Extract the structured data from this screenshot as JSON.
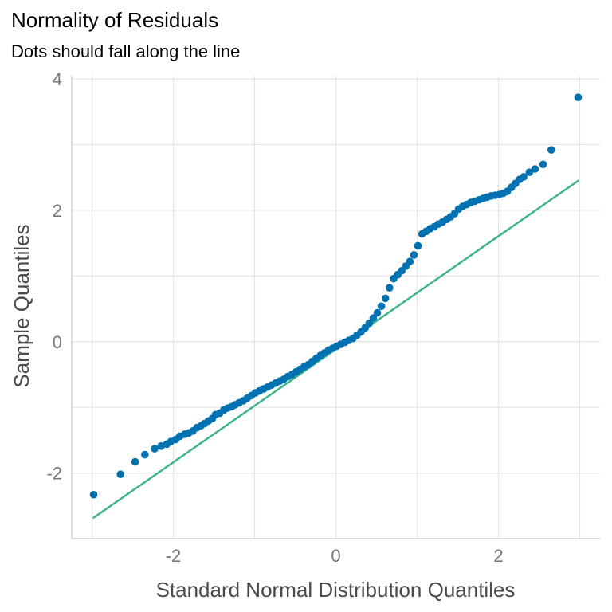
{
  "chart_data": {
    "type": "scatter",
    "title": "Normality of Residuals",
    "subtitle": "Dots should fall along the line",
    "xlabel": "Standard Normal Distribution Quantiles",
    "ylabel": "Sample Quantiles",
    "xlim": [
      -3.25,
      3.25
    ],
    "ylim": [
      -3.0,
      4.05
    ],
    "x_ticks": [
      -2,
      0,
      2
    ],
    "x_tick_labels": [
      "-2",
      "0",
      "2"
    ],
    "y_ticks": [
      -2,
      0,
      2,
      4
    ],
    "y_tick_labels": [
      "-2",
      "0",
      "2",
      "4"
    ],
    "grid": true,
    "legend": "none",
    "colors": {
      "points": "#0072b2",
      "reference_line": "#3eb489",
      "grid": "#e5e5e5",
      "axis": "#c8c8c8"
    },
    "reference_line": {
      "x": [
        -2.98,
        2.98
      ],
      "y": [
        -2.68,
        2.45
      ]
    },
    "series": [
      {
        "x": [
          -2.98,
          -2.65,
          -2.47,
          -2.35,
          -2.23,
          -2.15,
          -2.08,
          -2.03,
          -1.97,
          -1.92,
          -1.86,
          -1.81,
          -1.76,
          -1.71,
          -1.66,
          -1.62,
          -1.57,
          -1.52,
          -1.48,
          -1.43,
          -1.38,
          -1.33,
          -1.28,
          -1.24,
          -1.19,
          -1.14,
          -1.09,
          -1.04,
          -0.99,
          -0.94,
          -0.89,
          -0.84,
          -0.79,
          -0.74,
          -0.69,
          -0.64,
          -0.59,
          -0.54,
          -0.49,
          -0.44,
          -0.39,
          -0.34,
          -0.29,
          -0.24,
          -0.19,
          -0.14,
          -0.09,
          -0.04,
          0.01,
          0.06,
          0.11,
          0.16,
          0.21,
          0.26,
          0.31,
          0.36,
          0.41,
          0.46,
          0.51,
          0.56,
          0.61,
          0.66,
          0.71,
          0.76,
          0.81,
          0.86,
          0.91,
          0.96,
          1.01,
          1.06,
          1.11,
          1.16,
          1.21,
          1.26,
          1.31,
          1.36,
          1.41,
          1.46,
          1.51,
          1.56,
          1.61,
          1.66,
          1.71,
          1.76,
          1.81,
          1.86,
          1.91,
          1.96,
          2.01,
          2.06,
          2.11,
          2.16,
          2.21,
          2.26,
          2.31,
          2.38,
          2.45,
          2.55,
          2.65,
          2.98
        ],
        "y": [
          -2.33,
          -2.02,
          -1.83,
          -1.72,
          -1.63,
          -1.59,
          -1.56,
          -1.52,
          -1.49,
          -1.44,
          -1.41,
          -1.39,
          -1.36,
          -1.31,
          -1.28,
          -1.25,
          -1.21,
          -1.17,
          -1.11,
          -1.09,
          -1.04,
          -1.01,
          -0.99,
          -0.96,
          -0.93,
          -0.9,
          -0.86,
          -0.82,
          -0.78,
          -0.75,
          -0.72,
          -0.69,
          -0.66,
          -0.63,
          -0.6,
          -0.57,
          -0.53,
          -0.5,
          -0.46,
          -0.42,
          -0.38,
          -0.35,
          -0.3,
          -0.25,
          -0.21,
          -0.17,
          -0.13,
          -0.1,
          -0.07,
          -0.04,
          -0.01,
          0.02,
          0.05,
          0.1,
          0.15,
          0.21,
          0.28,
          0.36,
          0.44,
          0.54,
          0.66,
          0.82,
          0.96,
          1.02,
          1.08,
          1.15,
          1.22,
          1.32,
          1.46,
          1.64,
          1.68,
          1.72,
          1.75,
          1.79,
          1.82,
          1.86,
          1.9,
          1.95,
          2.02,
          2.06,
          2.09,
          2.12,
          2.14,
          2.16,
          2.18,
          2.2,
          2.22,
          2.23,
          2.24,
          2.26,
          2.29,
          2.35,
          2.41,
          2.47,
          2.51,
          2.58,
          2.63,
          2.7,
          2.92,
          3.72
        ]
      }
    ]
  }
}
